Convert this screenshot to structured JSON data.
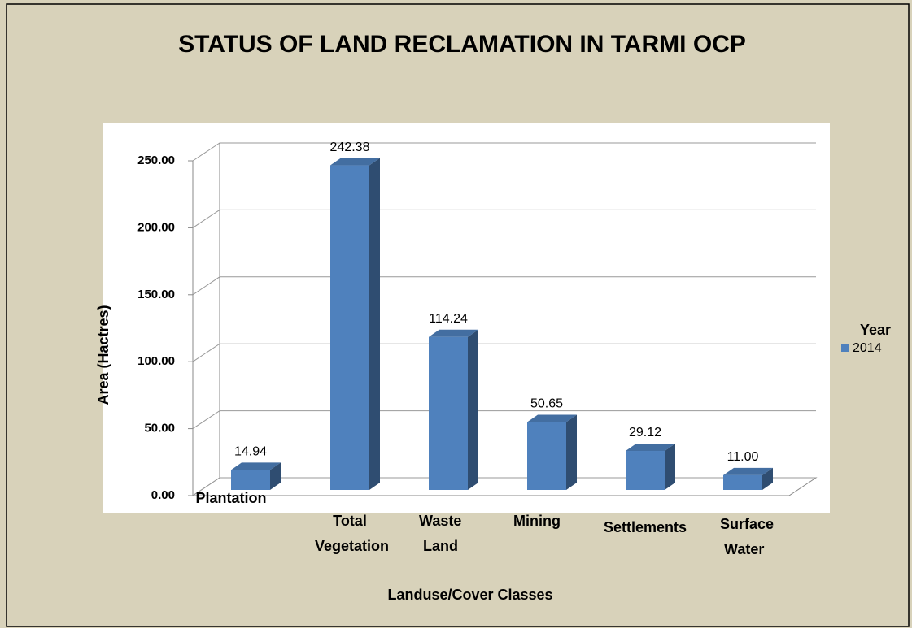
{
  "chart_data": {
    "type": "bar3d",
    "title": "STATUS OF LAND RECLAMATION IN TARMI OCP",
    "x_label": "Landuse/Cover Classes",
    "y_label": "Area (Hactres)",
    "legend_title": "Year",
    "categories": [
      "Plantation",
      "Total Vegetation",
      "Waste Land",
      "Mining",
      "Settlements",
      "Surface Water"
    ],
    "series": [
      {
        "name": "2014",
        "color": "#4f81bd",
        "values": [
          14.94,
          242.38,
          114.24,
          50.65,
          29.12,
          11.0
        ],
        "value_labels": [
          "14.94",
          "242.38",
          "114.24",
          "50.65",
          "29.12",
          "11.00"
        ]
      }
    ],
    "ylim": [
      0,
      250
    ],
    "yticks": [
      {
        "value": 0,
        "label": "0.00"
      },
      {
        "value": 50,
        "label": "50.00"
      },
      {
        "value": 100,
        "label": "100.00"
      },
      {
        "value": 150,
        "label": "150.00"
      },
      {
        "value": 200,
        "label": "200.00"
      },
      {
        "value": 250,
        "label": "250.00"
      }
    ],
    "grid": true
  }
}
